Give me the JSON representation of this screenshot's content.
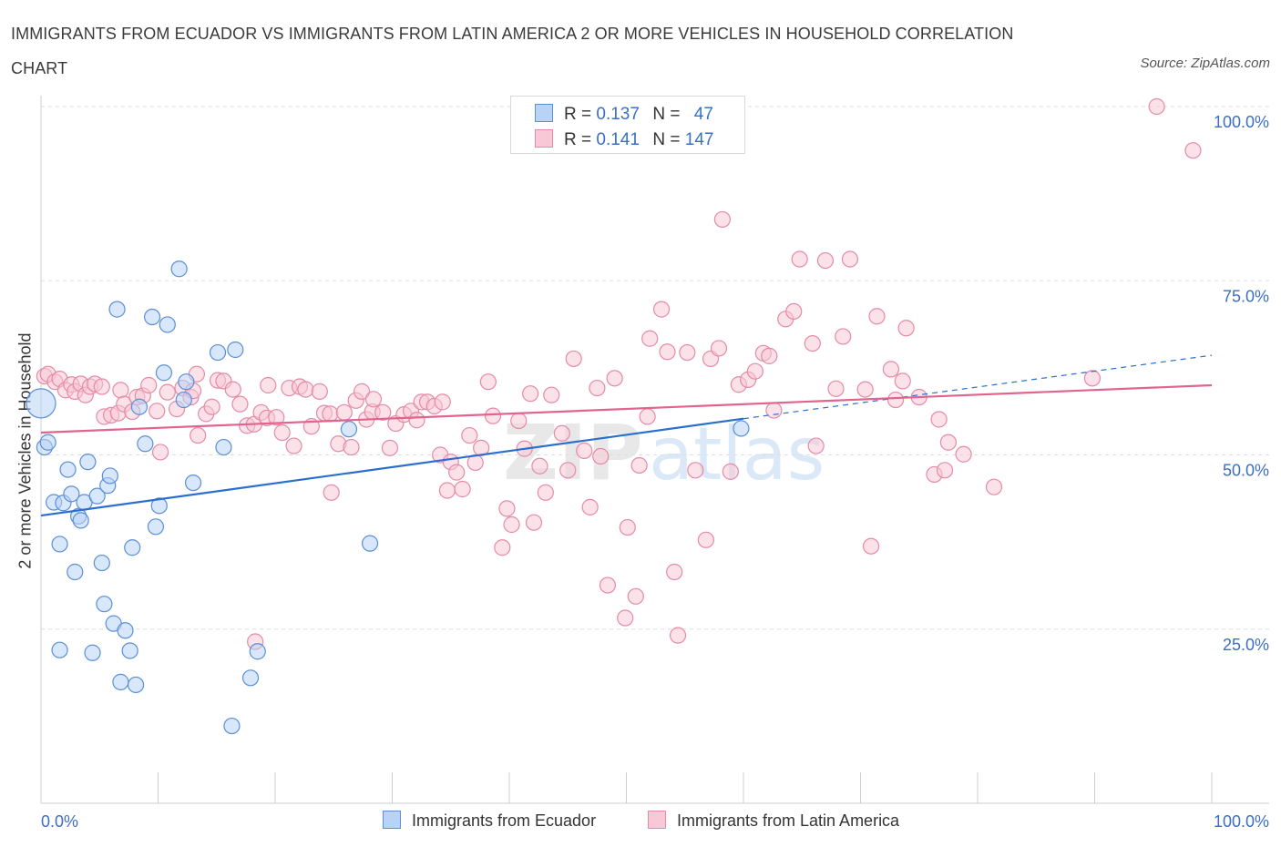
{
  "title": "IMMIGRANTS FROM ECUADOR VS IMMIGRANTS FROM LATIN AMERICA 2 OR MORE VEHICLES IN HOUSEHOLD CORRELATION CHART",
  "source": "Source: ZipAtlas.com",
  "watermark": {
    "zip": "ZIP",
    "atlas": "atlas"
  },
  "legend": {
    "r_label": "R =",
    "n_label": "N =",
    "ecuador": {
      "r": "0.137",
      "n": "47"
    },
    "latin": {
      "r": "0.141",
      "n": "147"
    }
  },
  "colors": {
    "ecuador_fill": "#b8d3f5",
    "ecuador_stroke": "#5b8fd6",
    "ecuador_line": "#2a6fce",
    "latin_fill": "#f8c8d6",
    "latin_stroke": "#e58aa8",
    "latin_line": "#e0648e",
    "tick_label": "#3b6fc4"
  },
  "chart_data": {
    "type": "scatter",
    "title": "IMMIGRANTS FROM ECUADOR VS IMMIGRANTS FROM LATIN AMERICA 2 OR MORE VEHICLES IN HOUSEHOLD CORRELATION CHART",
    "xlabel": "",
    "ylabel": "2 or more Vehicles in Household",
    "xlim": [
      0,
      100
    ],
    "ylim": [
      0,
      100
    ],
    "x_tick_labels": [
      "0.0%",
      "100.0%"
    ],
    "y_ticks": [
      25,
      50,
      75,
      100
    ],
    "y_tick_labels": [
      "25.0%",
      "50.0%",
      "75.0%",
      "100.0%"
    ],
    "grid": true,
    "legend_position": "top-center",
    "series": [
      {
        "name": "Immigrants from Ecuador",
        "trend": {
          "x0": 0,
          "y0": 41.3,
          "x1": 60,
          "y1": 55.2,
          "dashed_to_x": 100,
          "dashed_to_y": 64.3
        },
        "points": [
          [
            0.0,
            57.4
          ],
          [
            0.3,
            51.1
          ],
          [
            0.6,
            51.8
          ],
          [
            1.1,
            43.2
          ],
          [
            1.6,
            37.2
          ],
          [
            1.9,
            43.1
          ],
          [
            2.3,
            47.9
          ],
          [
            2.6,
            44.4
          ],
          [
            2.9,
            33.2
          ],
          [
            3.2,
            41.2
          ],
          [
            3.4,
            40.6
          ],
          [
            3.7,
            43.2
          ],
          [
            4.0,
            49.0
          ],
          [
            4.4,
            21.6
          ],
          [
            4.8,
            44.1
          ],
          [
            5.2,
            34.5
          ],
          [
            5.4,
            28.6
          ],
          [
            5.7,
            45.6
          ],
          [
            5.9,
            47.0
          ],
          [
            6.2,
            25.8
          ],
          [
            6.5,
            70.9
          ],
          [
            6.8,
            17.4
          ],
          [
            7.2,
            24.8
          ],
          [
            7.6,
            21.9
          ],
          [
            7.8,
            36.7
          ],
          [
            8.1,
            17.0
          ],
          [
            8.4,
            56.9
          ],
          [
            8.9,
            51.6
          ],
          [
            9.5,
            69.8
          ],
          [
            9.8,
            39.7
          ],
          [
            10.1,
            42.7
          ],
          [
            10.5,
            61.8
          ],
          [
            10.8,
            68.7
          ],
          [
            11.8,
            76.7
          ],
          [
            12.4,
            60.5
          ],
          [
            13.0,
            46.0
          ],
          [
            15.1,
            64.7
          ],
          [
            15.6,
            51.1
          ],
          [
            16.6,
            65.1
          ],
          [
            17.9,
            18.0
          ],
          [
            18.5,
            21.8
          ],
          [
            16.3,
            11.1
          ],
          [
            26.3,
            53.7
          ],
          [
            28.1,
            37.3
          ],
          [
            59.8,
            53.8
          ],
          [
            1.6,
            22.0
          ],
          [
            12.2,
            57.9
          ]
        ]
      },
      {
        "name": "Immigrants from Latin America",
        "trend": {
          "x0": 0,
          "y0": 53.2,
          "x1": 100,
          "y1": 60.0
        },
        "points": [
          [
            0.3,
            61.3
          ],
          [
            0.6,
            61.6
          ],
          [
            1.2,
            60.5
          ],
          [
            1.6,
            60.9
          ],
          [
            2.1,
            59.3
          ],
          [
            2.6,
            60.1
          ],
          [
            2.9,
            59.1
          ],
          [
            3.4,
            60.2
          ],
          [
            3.8,
            58.6
          ],
          [
            4.2,
            59.8
          ],
          [
            4.6,
            60.2
          ],
          [
            5.2,
            59.8
          ],
          [
            5.4,
            55.5
          ],
          [
            6.0,
            55.7
          ],
          [
            6.6,
            56.0
          ],
          [
            6.8,
            59.3
          ],
          [
            7.1,
            57.3
          ],
          [
            7.8,
            56.2
          ],
          [
            8.2,
            58.3
          ],
          [
            8.7,
            58.5
          ],
          [
            9.2,
            60.0
          ],
          [
            9.9,
            56.3
          ],
          [
            10.2,
            50.4
          ],
          [
            10.8,
            59.0
          ],
          [
            11.6,
            56.6
          ],
          [
            12.1,
            59.6
          ],
          [
            12.8,
            58.3
          ],
          [
            13.4,
            52.8
          ],
          [
            14.1,
            55.9
          ],
          [
            14.6,
            56.9
          ],
          [
            15.1,
            60.7
          ],
          [
            15.6,
            60.6
          ],
          [
            16.4,
            59.4
          ],
          [
            17.0,
            57.3
          ],
          [
            17.6,
            54.2
          ],
          [
            18.2,
            54.4
          ],
          [
            18.8,
            56.1
          ],
          [
            19.3,
            55.3
          ],
          [
            19.4,
            60.0
          ],
          [
            20.1,
            55.4
          ],
          [
            20.6,
            53.2
          ],
          [
            21.2,
            59.6
          ],
          [
            21.6,
            51.3
          ],
          [
            22.1,
            59.8
          ],
          [
            22.6,
            59.4
          ],
          [
            23.1,
            54.1
          ],
          [
            23.8,
            59.1
          ],
          [
            24.2,
            56.0
          ],
          [
            24.7,
            55.9
          ],
          [
            25.4,
            51.6
          ],
          [
            25.9,
            56.1
          ],
          [
            26.5,
            51.1
          ],
          [
            26.9,
            57.8
          ],
          [
            27.4,
            59.1
          ],
          [
            27.8,
            55.1
          ],
          [
            28.3,
            56.2
          ],
          [
            29.2,
            56.1
          ],
          [
            29.8,
            51.0
          ],
          [
            30.3,
            54.5
          ],
          [
            31.0,
            55.8
          ],
          [
            31.6,
            56.3
          ],
          [
            32.1,
            55.0
          ],
          [
            32.5,
            57.6
          ],
          [
            33.0,
            57.6
          ],
          [
            33.6,
            57.0
          ],
          [
            34.1,
            50.0
          ],
          [
            34.7,
            44.9
          ],
          [
            35.0,
            49.0
          ],
          [
            35.5,
            47.5
          ],
          [
            36.0,
            45.1
          ],
          [
            36.6,
            52.8
          ],
          [
            37.1,
            48.9
          ],
          [
            37.6,
            51.0
          ],
          [
            38.2,
            60.5
          ],
          [
            38.6,
            55.6
          ],
          [
            39.4,
            36.7
          ],
          [
            39.8,
            42.3
          ],
          [
            40.2,
            40.0
          ],
          [
            40.8,
            54.9
          ],
          [
            41.3,
            50.9
          ],
          [
            42.1,
            40.3
          ],
          [
            42.6,
            48.4
          ],
          [
            43.1,
            44.6
          ],
          [
            43.6,
            58.6
          ],
          [
            44.5,
            53.1
          ],
          [
            45.0,
            47.8
          ],
          [
            45.5,
            63.8
          ],
          [
            46.4,
            50.6
          ],
          [
            46.9,
            42.5
          ],
          [
            47.5,
            59.6
          ],
          [
            47.8,
            49.8
          ],
          [
            48.4,
            31.3
          ],
          [
            49.0,
            61.0
          ],
          [
            49.9,
            26.6
          ],
          [
            50.1,
            39.6
          ],
          [
            50.8,
            29.7
          ],
          [
            51.1,
            48.5
          ],
          [
            51.8,
            55.5
          ],
          [
            52.0,
            66.7
          ],
          [
            53.0,
            70.9
          ],
          [
            53.5,
            64.8
          ],
          [
            54.1,
            33.2
          ],
          [
            54.4,
            24.1
          ],
          [
            55.2,
            64.7
          ],
          [
            55.9,
            47.8
          ],
          [
            57.2,
            63.8
          ],
          [
            57.9,
            65.3
          ],
          [
            58.2,
            83.8
          ],
          [
            58.9,
            47.6
          ],
          [
            59.6,
            60.1
          ],
          [
            60.4,
            60.8
          ],
          [
            61.0,
            62.0
          ],
          [
            61.7,
            64.6
          ],
          [
            62.2,
            64.2
          ],
          [
            63.6,
            69.5
          ],
          [
            64.3,
            70.6
          ],
          [
            64.8,
            78.1
          ],
          [
            65.9,
            66.0
          ],
          [
            66.2,
            51.3
          ],
          [
            67.0,
            77.9
          ],
          [
            67.9,
            59.5
          ],
          [
            68.5,
            67.0
          ],
          [
            69.1,
            78.1
          ],
          [
            70.4,
            59.4
          ],
          [
            70.9,
            36.9
          ],
          [
            71.4,
            69.9
          ],
          [
            72.6,
            62.3
          ],
          [
            73.0,
            57.9
          ],
          [
            73.6,
            60.6
          ],
          [
            75.0,
            58.3
          ],
          [
            76.3,
            47.2
          ],
          [
            76.7,
            55.1
          ],
          [
            77.2,
            47.8
          ],
          [
            77.5,
            51.8
          ],
          [
            78.8,
            50.1
          ],
          [
            81.4,
            45.4
          ],
          [
            89.8,
            61.0
          ],
          [
            95.3,
            100.0
          ],
          [
            98.4,
            93.7
          ],
          [
            18.3,
            23.2
          ],
          [
            28.4,
            58.0
          ],
          [
            41.8,
            58.8
          ],
          [
            13.0,
            59.2
          ],
          [
            34.3,
            57.6
          ],
          [
            56.8,
            37.8
          ],
          [
            24.8,
            44.6
          ],
          [
            62.6,
            56.4
          ],
          [
            73.9,
            68.2
          ],
          [
            13.3,
            61.6
          ]
        ]
      }
    ]
  },
  "bottom_legend": {
    "ecuador_label": "Immigrants from Ecuador",
    "latin_label": "Immigrants from Latin America"
  }
}
